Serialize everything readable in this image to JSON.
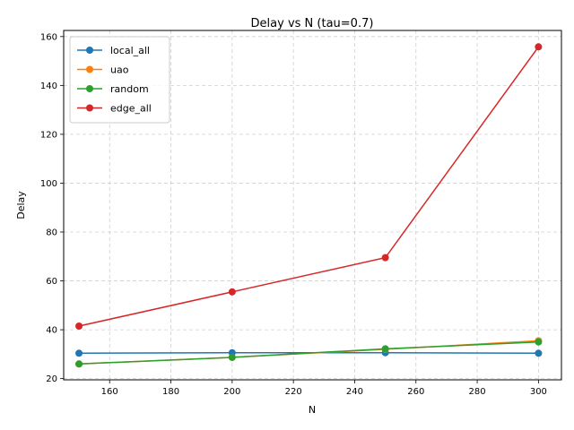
{
  "chart_data": {
    "type": "line",
    "title": "Delay vs N (tau=0.7)",
    "xlabel": "N",
    "ylabel": "Delay",
    "x": [
      150,
      200,
      250,
      300
    ],
    "xlim": [
      145,
      307.5
    ],
    "ylim": [
      19.5,
      162.5
    ],
    "xticks": [
      160,
      180,
      200,
      220,
      240,
      260,
      280,
      300
    ],
    "yticks": [
      20,
      40,
      60,
      80,
      100,
      120,
      140,
      160
    ],
    "grid": true,
    "legend_position": "top-left",
    "series": [
      {
        "name": "local_all",
        "color": "#1f77b4",
        "values": [
          30.4,
          30.6,
          30.6,
          30.4
        ]
      },
      {
        "name": "uao",
        "color": "#ff7f0e",
        "values": [
          26.0,
          28.7,
          32.0,
          35.5
        ]
      },
      {
        "name": "random",
        "color": "#2ca02c",
        "values": [
          26.0,
          28.7,
          32.2,
          35.0
        ]
      },
      {
        "name": "edge_all",
        "color": "#d62728",
        "values": [
          41.5,
          55.5,
          69.5,
          155.8
        ]
      }
    ]
  }
}
